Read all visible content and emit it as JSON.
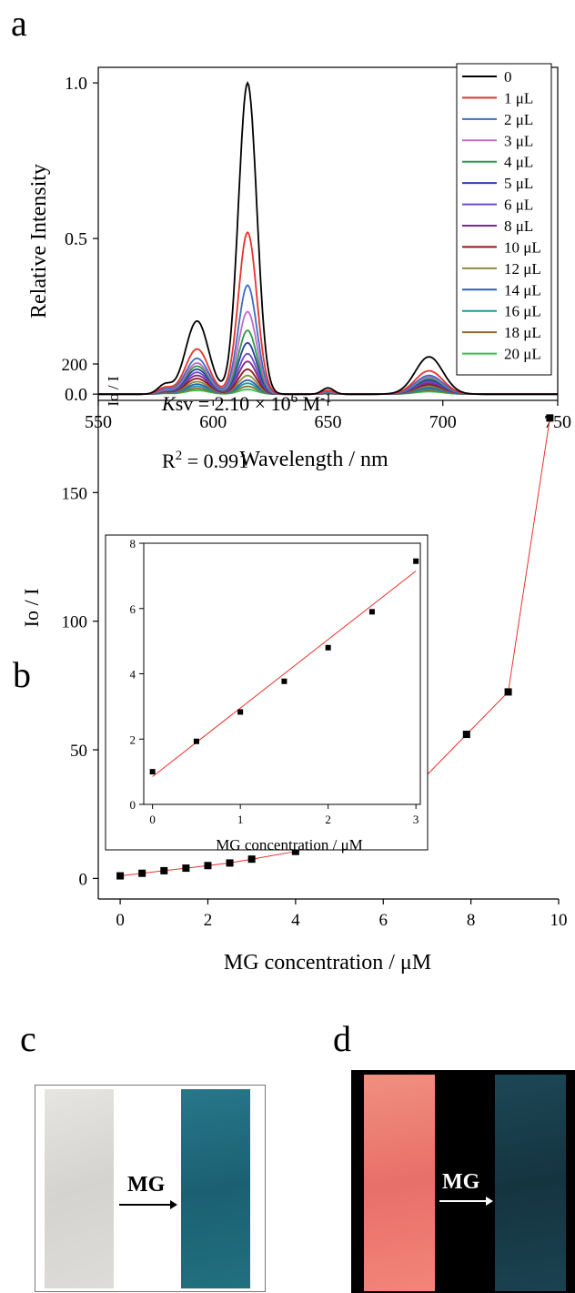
{
  "panel_labels": {
    "a": "a",
    "b": "b",
    "c": "c",
    "d": "d"
  },
  "chart_data": [
    {
      "type": "line",
      "xlabel": "Wavelength / nm",
      "ylabel": "Relative Intensity",
      "xlim": [
        550,
        750
      ],
      "ylim": [
        -0.02,
        1.05
      ],
      "xticks": [
        550,
        600,
        650,
        700,
        750
      ],
      "yticks": [
        0.0,
        0.5,
        1.0
      ],
      "ytick_labels": [
        "0.0",
        "0.5",
        "1.0"
      ],
      "legend_position": "top-right",
      "peaks": {
        "centers_nm": [
          579,
          593,
          615,
          650,
          694
        ],
        "widths_nm": [
          3,
          5,
          4,
          2.5,
          6
        ]
      },
      "series": [
        {
          "name": "0",
          "color": "#000000",
          "peak_heights": [
            0.03,
            0.235,
            1.0,
            0.02,
            0.12
          ]
        },
        {
          "name": "1 μL",
          "color": "#e8322c",
          "peak_heights": [
            0.02,
            0.145,
            0.52,
            0.012,
            0.075
          ]
        },
        {
          "name": "2 μL",
          "color": "#3a6fc0",
          "peak_heights": [
            0.015,
            0.115,
            0.35,
            0.01,
            0.06
          ]
        },
        {
          "name": "3 μL",
          "color": "#c46ac8",
          "peak_heights": [
            0.012,
            0.1,
            0.265,
            0.008,
            0.055
          ]
        },
        {
          "name": "4 μL",
          "color": "#2c9a4a",
          "peak_heights": [
            0.011,
            0.09,
            0.205,
            0.007,
            0.05
          ]
        },
        {
          "name": "5 μL",
          "color": "#2a3f9c",
          "peak_heights": [
            0.01,
            0.08,
            0.165,
            0.006,
            0.045
          ]
        },
        {
          "name": "6 μL",
          "color": "#6a4bc8",
          "peak_heights": [
            0.009,
            0.07,
            0.13,
            0.005,
            0.04
          ]
        },
        {
          "name": "8 μL",
          "color": "#7c2a8c",
          "peak_heights": [
            0.008,
            0.06,
            0.105,
            0.005,
            0.035
          ]
        },
        {
          "name": "10 μL",
          "color": "#8c1a1a",
          "peak_heights": [
            0.007,
            0.05,
            0.08,
            0.004,
            0.03
          ]
        },
        {
          "name": "12 μL",
          "color": "#8a8a3a",
          "peak_heights": [
            0.006,
            0.04,
            0.06,
            0.003,
            0.025
          ]
        },
        {
          "name": "14 μL",
          "color": "#2e62b0",
          "peak_heights": [
            0.005,
            0.032,
            0.045,
            0.003,
            0.02
          ]
        },
        {
          "name": "16 μL",
          "color": "#1f9aa0",
          "peak_heights": [
            0.004,
            0.025,
            0.035,
            0.002,
            0.016
          ]
        },
        {
          "name": "18 μL",
          "color": "#8c6a2a",
          "peak_heights": [
            0.003,
            0.018,
            0.025,
            0.002,
            0.012
          ]
        },
        {
          "name": "20 μL",
          "color": "#2ec44a",
          "peak_heights": [
            0.002,
            0.012,
            0.015,
            0.001,
            0.008
          ]
        }
      ]
    },
    {
      "type": "scatter",
      "xlabel": "MG concentration /  μM",
      "ylabel": "Io / I",
      "xlim": [
        -0.5,
        10
      ],
      "ylim": [
        -8,
        200
      ],
      "xticks": [
        0,
        2,
        4,
        6,
        8,
        10
      ],
      "yticks": [
        0,
        50,
        100,
        150,
        200
      ],
      "line_color": "#e8322c",
      "marker_color": "#000000",
      "x": [
        0,
        0.5,
        1,
        1.5,
        2,
        2.5,
        3,
        4,
        4.95,
        5.95,
        6.9,
        7.9,
        8.85,
        9.8
      ],
      "y": [
        1,
        2,
        3,
        4,
        5,
        6,
        7.5,
        10.5,
        16.5,
        25,
        38.5,
        56,
        72.5,
        179
      ]
    },
    {
      "type": "scatter",
      "xlabel": "MG concentration /  μM",
      "ylabel": "Io / I",
      "xlim": [
        -0.1,
        3.05
      ],
      "ylim": [
        0,
        8
      ],
      "xticks": [
        0,
        1,
        2,
        3
      ],
      "yticks": [
        0,
        2,
        4,
        6,
        8
      ],
      "fit_line": {
        "slope": 2.1,
        "intercept": 0.85
      },
      "line_color": "#e8322c",
      "marker_color": "#000000",
      "x": [
        0,
        0.5,
        1,
        1.5,
        2,
        2.5,
        3
      ],
      "y": [
        1.0,
        1.93,
        2.83,
        3.77,
        4.8,
        5.9,
        7.45
      ],
      "annotation_ksv": {
        "k": "K",
        "sv": "sv = 2.10 × 10",
        "exp": "6",
        "unit": " M",
        "unit_exp": "-1"
      },
      "annotation_r2": {
        "r": "R",
        "exp": "2",
        "value": " = 0.991"
      }
    }
  ],
  "photos": {
    "c_label": "MG",
    "d_label": "MG",
    "c_strip_left_color": "#dcdbd7",
    "c_strip_right_color": "#1f6c7c",
    "d_strip_left_color": "#ec8078",
    "d_strip_right_color": "#173d4a",
    "d_background": "#000000"
  }
}
